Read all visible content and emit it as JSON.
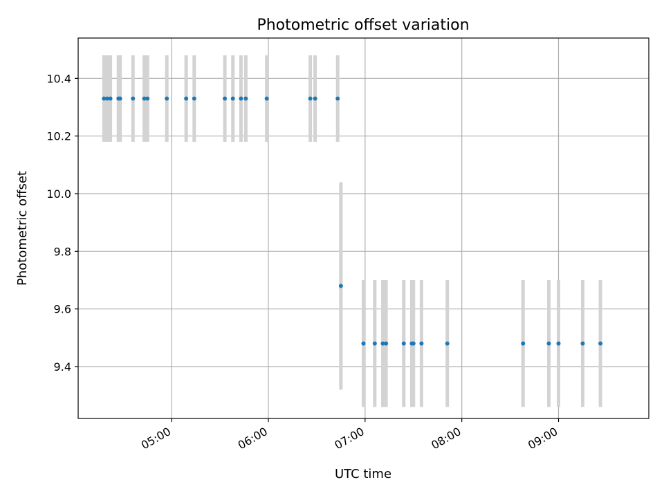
{
  "chart_data": {
    "type": "scatter",
    "title": "Photometric offset variation",
    "xlabel": "UTC time",
    "ylabel": "Photometric offset",
    "x_axis_type": "time",
    "xlim": [
      "04:02",
      "09:56"
    ],
    "ylim": [
      9.22,
      10.54
    ],
    "x_ticks": [
      "05:00",
      "06:00",
      "07:00",
      "08:00",
      "09:00"
    ],
    "y_ticks": [
      9.4,
      9.6,
      9.8,
      10.0,
      10.2,
      10.4
    ],
    "y_tick_labels": [
      "9.4",
      "9.6",
      "9.8",
      "10.0",
      "10.2",
      "10.4"
    ],
    "grid": true,
    "legend": "none",
    "marker_color": "#1f77b4",
    "errorbar_color": "#d3d3d3",
    "series": [
      {
        "times": [
          "04:18",
          "04:20",
          "04:22",
          "04:27",
          "04:28",
          "04:36",
          "04:43",
          "04:45",
          "04:57",
          "05:09",
          "05:14",
          "05:33",
          "05:38",
          "05:43",
          "05:46",
          "05:59",
          "06:26",
          "06:29",
          "06:43",
          "06:45",
          "06:59",
          "07:06",
          "07:11",
          "07:13",
          "07:24",
          "07:29",
          "07:30",
          "07:35",
          "07:51",
          "08:38",
          "08:54",
          "09:00",
          "09:15",
          "09:26"
        ],
        "y": [
          10.33,
          10.33,
          10.33,
          10.33,
          10.33,
          10.33,
          10.33,
          10.33,
          10.33,
          10.33,
          10.33,
          10.33,
          10.33,
          10.33,
          10.33,
          10.33,
          10.33,
          10.33,
          10.33,
          9.68,
          9.48,
          9.48,
          9.48,
          9.48,
          9.48,
          9.48,
          9.48,
          9.48,
          9.48,
          9.48,
          9.48,
          9.48,
          9.48,
          9.48
        ],
        "yerr": [
          0.15,
          0.15,
          0.15,
          0.15,
          0.15,
          0.15,
          0.15,
          0.15,
          0.15,
          0.15,
          0.15,
          0.15,
          0.15,
          0.15,
          0.15,
          0.15,
          0.15,
          0.15,
          0.15,
          0.36,
          0.22,
          0.22,
          0.22,
          0.22,
          0.22,
          0.22,
          0.22,
          0.22,
          0.22,
          0.22,
          0.22,
          0.22,
          0.22,
          0.22
        ]
      }
    ]
  }
}
